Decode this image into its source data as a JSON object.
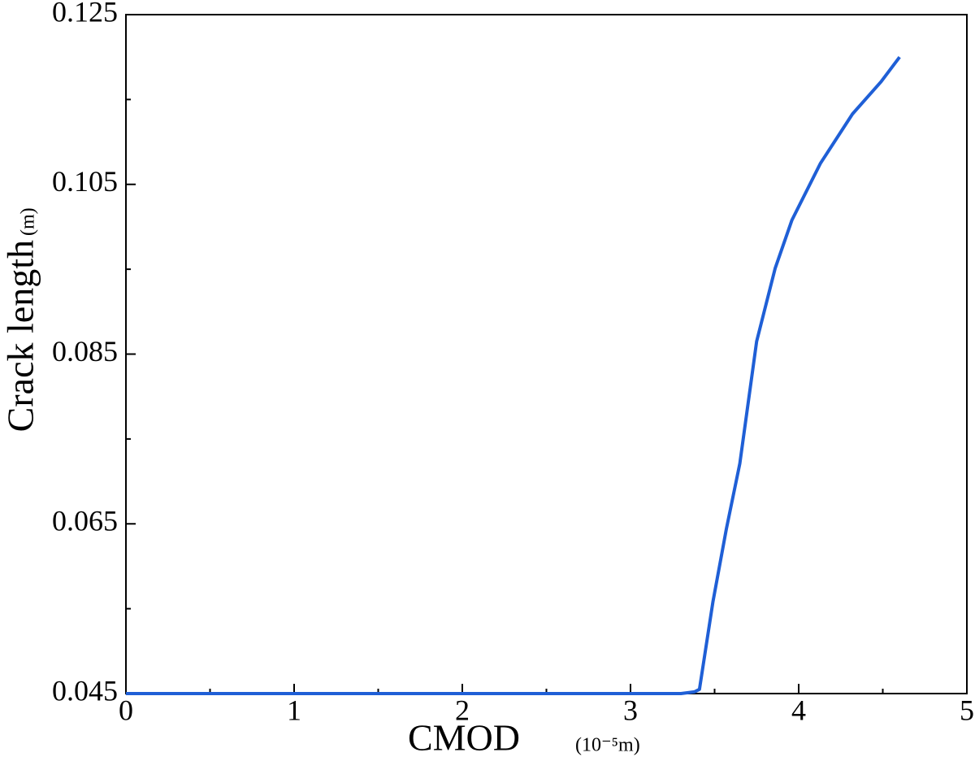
{
  "chart_data": {
    "type": "line",
    "xlabel": "CMOD",
    "xlabel_unit": "(10⁻⁵m)",
    "ylabel": "Crack length",
    "ylabel_unit": "(m)",
    "x": [
      0,
      3.3,
      3.38,
      3.41,
      3.49,
      3.57,
      3.65,
      3.75,
      3.86,
      3.96,
      4.13,
      4.32,
      4.49,
      4.6
    ],
    "series": [
      {
        "name": "Crack length",
        "color": "#1f5fd6",
        "values": [
          0.045,
          0.045,
          0.0452,
          0.0455,
          0.0558,
          0.0644,
          0.0721,
          0.0865,
          0.0951,
          0.1008,
          0.1075,
          0.1133,
          0.1171,
          0.12
        ]
      }
    ],
    "xlim": [
      0,
      5
    ],
    "xticks": [
      0,
      1,
      2,
      3,
      4,
      5
    ],
    "xminorticks": [
      0.5,
      1.5,
      2.5,
      3.5,
      4.5
    ],
    "ylim": [
      0.045,
      0.125
    ],
    "yticks": [
      0.045,
      0.065,
      0.085,
      0.105,
      0.125
    ],
    "yminorticks": [
      0.055,
      0.075,
      0.095,
      0.115
    ]
  }
}
